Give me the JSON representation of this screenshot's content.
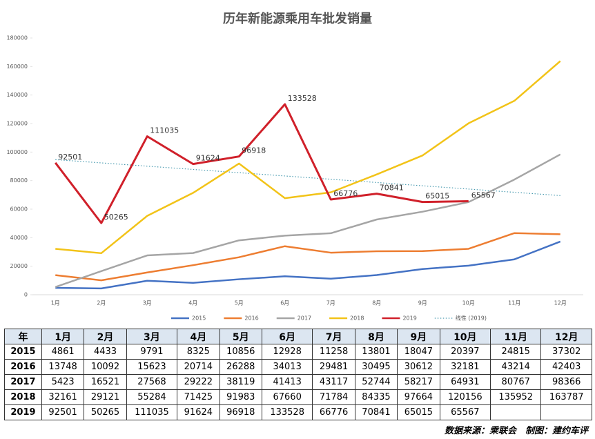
{
  "chart_data": {
    "type": "line",
    "title": "历年新能源乘用车批发销量",
    "categories": [
      "1月",
      "2月",
      "3月",
      "4月",
      "5月",
      "6月",
      "7月",
      "8月",
      "9月",
      "10月",
      "11月",
      "12月"
    ],
    "ylim": [
      0,
      180000
    ],
    "yticks": [
      0,
      20000,
      40000,
      60000,
      80000,
      100000,
      120000,
      140000,
      160000,
      180000
    ],
    "grid": false,
    "series": [
      {
        "name": "2015",
        "color": "#4472c4",
        "values": [
          4861,
          4433,
          9791,
          8325,
          10856,
          12928,
          11258,
          13801,
          18047,
          20397,
          24815,
          37302
        ]
      },
      {
        "name": "2016",
        "color": "#ed7d31",
        "values": [
          13748,
          10092,
          15623,
          20714,
          26288,
          34013,
          29481,
          30495,
          30612,
          32181,
          43214,
          42403
        ]
      },
      {
        "name": "2017",
        "color": "#a5a5a5",
        "values": [
          5423,
          16521,
          27568,
          29222,
          38119,
          41413,
          43117,
          52744,
          58217,
          64931,
          80767,
          98366
        ]
      },
      {
        "name": "2018",
        "color": "#f2c318",
        "values": [
          32161,
          29121,
          55284,
          71425,
          91983,
          67660,
          71784,
          84335,
          97664,
          120156,
          135952,
          163787
        ]
      },
      {
        "name": "2019",
        "color": "#d0202a",
        "show_labels": true,
        "values": [
          92501,
          50265,
          111035,
          91624,
          96918,
          133528,
          66776,
          70841,
          65015,
          65567,
          null,
          null
        ]
      }
    ],
    "trendline": {
      "name": "线性 (2019)",
      "color": "#4a9bb0",
      "start": 94717,
      "end": 69515
    },
    "table_header_year": "年",
    "source": "数据来源：乘联会　制图：建约车评"
  }
}
